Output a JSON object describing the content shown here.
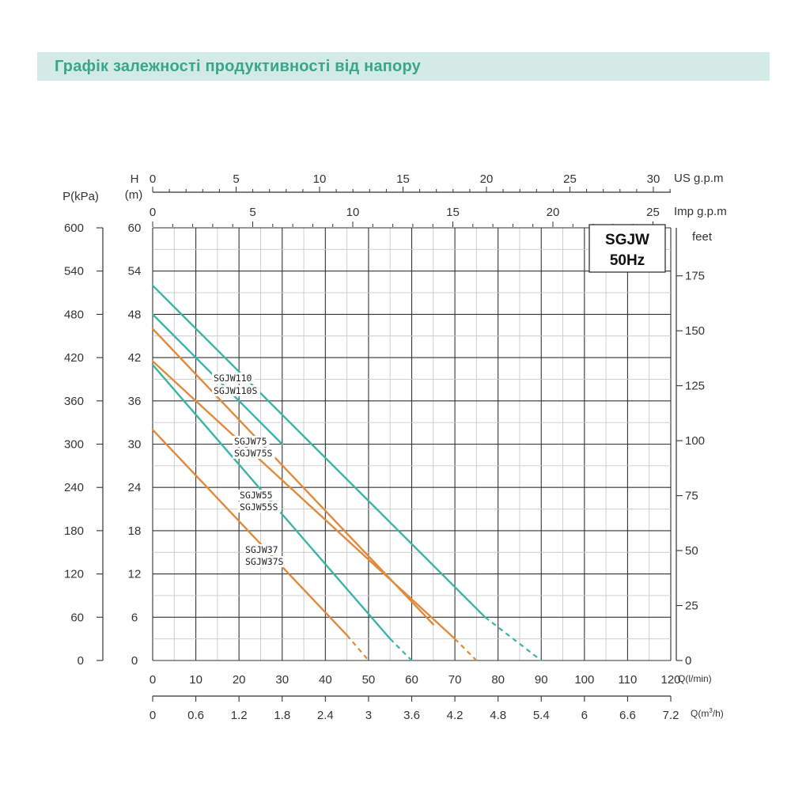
{
  "header": {
    "title": "Графік залежності продуктивності від напору"
  },
  "chart_data": {
    "type": "line",
    "badge": [
      "SGJW",
      "50Hz"
    ],
    "x_primary": {
      "label": "Q(l/min)",
      "ticks": [
        "0",
        "10",
        "20",
        "30",
        "40",
        "50",
        "60",
        "70",
        "80",
        "90",
        "100",
        "110",
        "120"
      ],
      "range": [
        0,
        120
      ]
    },
    "x_secondary": {
      "label": "Q(m³/h)",
      "label_base": "Q(m",
      "label_sup": "3",
      "label_end": "/h)",
      "ticks": [
        "0",
        "0.6",
        "1.2",
        "1.8",
        "2.4",
        "3",
        "3.6",
        "4.2",
        "4.8",
        "5.4",
        "6",
        "6.6",
        "7.2"
      ]
    },
    "x_top_us": {
      "label": "US g.p.m",
      "ticks": [
        "0",
        "5",
        "10",
        "15",
        "20",
        "25",
        "30"
      ]
    },
    "x_top_imp": {
      "label": "Imp g.p.m",
      "ticks": [
        "0",
        "5",
        "10",
        "15",
        "20",
        "25"
      ]
    },
    "y_head_m": {
      "label_1": "H",
      "label_2": "(m)",
      "ticks": [
        "0",
        "6",
        "12",
        "18",
        "24",
        "30",
        "36",
        "42",
        "48",
        "54",
        "60"
      ],
      "range": [
        0,
        60
      ]
    },
    "y_pressure_kpa": {
      "label": "P(kPa)",
      "ticks": [
        "0",
        "60",
        "120",
        "180",
        "240",
        "300",
        "360",
        "420",
        "480",
        "540",
        "600"
      ]
    },
    "y_feet": {
      "label": "feet",
      "ticks": [
        "0",
        "25",
        "50",
        "75",
        "100",
        "125",
        "150",
        "175"
      ]
    },
    "series_labels": [
      "SGJW110",
      "SGJW110S",
      "SGJW75",
      "SGJW75S",
      "SGJW55",
      "SGJW55S",
      "SGJW37",
      "SGJW37S"
    ],
    "series": [
      {
        "name": "SGJW110S",
        "color": "#3ab4a4",
        "points": [
          [
            0,
            52
          ],
          [
            77,
            6
          ]
        ],
        "dashed_to": [
          90,
          0
        ]
      },
      {
        "name": "SGJW110",
        "color": "#3ab4a4",
        "points": [
          [
            0,
            48
          ],
          [
            30,
            30
          ]
        ]
      },
      {
        "name": "SGJW75",
        "color": "#e08a3c",
        "points": [
          [
            0,
            46
          ],
          [
            65,
            5
          ]
        ]
      },
      {
        "name": "SGJW75S",
        "color": "#e08a3c",
        "points": [
          [
            0,
            41.5
          ],
          [
            70,
            3
          ]
        ],
        "dashed_to": [
          75,
          0
        ]
      },
      {
        "name": "SGJW55",
        "color": "#3ab4a4",
        "points": [
          [
            0,
            41
          ],
          [
            55,
            3
          ]
        ],
        "dashed_to": [
          60,
          0
        ]
      },
      {
        "name": "SGJW37",
        "color": "#e08a3c",
        "points": [
          [
            0,
            32
          ],
          [
            45,
            3.5
          ]
        ],
        "dashed_to": [
          50,
          0
        ]
      }
    ],
    "grid": true
  }
}
